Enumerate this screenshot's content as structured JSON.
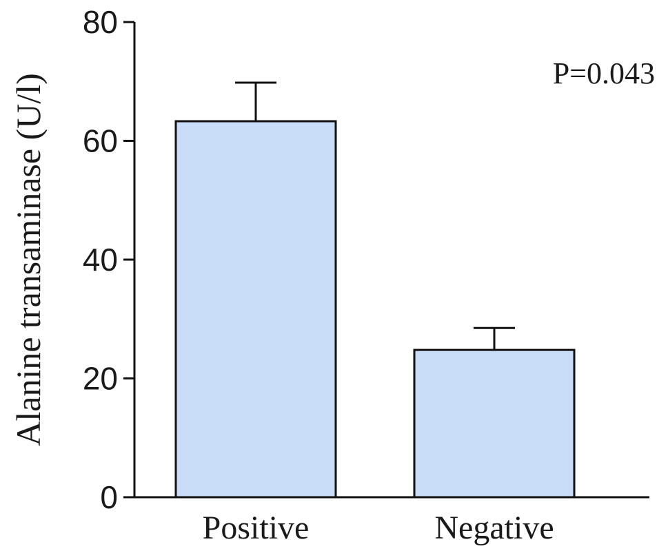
{
  "chart_data": {
    "type": "bar",
    "categories": [
      "Positive",
      "Negative"
    ],
    "values": [
      63.3,
      24.8
    ],
    "error_upper": [
      69.8,
      28.5
    ],
    "title": "",
    "xlabel": "",
    "ylabel": "Alanine transaminase (U/l)",
    "ylim": [
      0,
      80
    ],
    "yticks": [
      0,
      20,
      40,
      60,
      80
    ],
    "ytick_labels": [
      "0",
      "20",
      "40",
      "60",
      "80"
    ],
    "annotation": "P=0.043",
    "grid": false,
    "bar_color": "#c9dcf8",
    "bar_edge_color": "#111111"
  }
}
